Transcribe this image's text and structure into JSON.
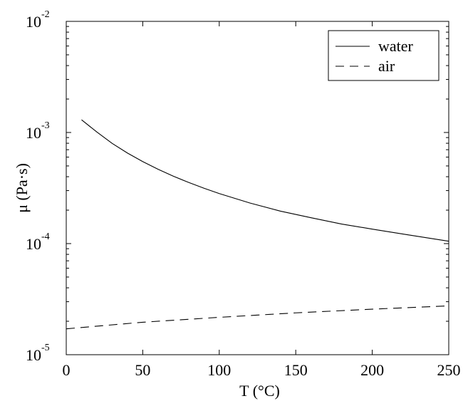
{
  "chart_data": {
    "type": "line",
    "title": "",
    "xlabel": "T (°C)",
    "ylabel": "μ (Pa·s)",
    "xlim": [
      0,
      250
    ],
    "ylim": [
      1e-05,
      0.01
    ],
    "yscale": "log",
    "grid": false,
    "legend_position": "top-right",
    "x_ticks": [
      0,
      50,
      100,
      150,
      200,
      250
    ],
    "y_ticks": [
      {
        "value": 1e-05,
        "base": "10",
        "exp": "-5"
      },
      {
        "value": 0.0001,
        "base": "10",
        "exp": "-4"
      },
      {
        "value": 0.001,
        "base": "10",
        "exp": "-3"
      },
      {
        "value": 0.01,
        "base": "10",
        "exp": "-2"
      }
    ],
    "series": [
      {
        "name": "water",
        "style": "solid",
        "color": "#000000",
        "x": [
          10,
          20,
          30,
          40,
          50,
          60,
          70,
          80,
          90,
          100,
          120,
          140,
          160,
          180,
          200,
          220,
          250
        ],
        "y": [
          0.0013,
          0.00101,
          0.000798,
          0.000653,
          0.000547,
          0.000467,
          0.000404,
          0.000355,
          0.000315,
          0.000282,
          0.000232,
          0.000196,
          0.000171,
          0.00015,
          0.000135,
          0.000122,
          0.000105
        ]
      },
      {
        "name": "air",
        "style": "dashed",
        "color": "#000000",
        "x": [
          0,
          50,
          100,
          150,
          200,
          250
        ],
        "y": [
          1.71e-05,
          1.96e-05,
          2.17e-05,
          2.38e-05,
          2.57e-05,
          2.75e-05
        ]
      }
    ]
  }
}
